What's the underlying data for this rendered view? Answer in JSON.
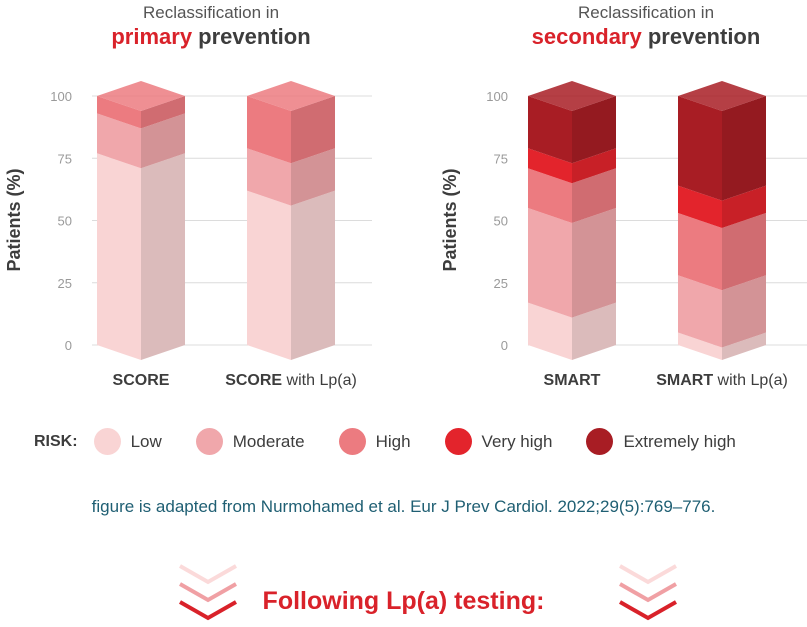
{
  "colors": {
    "Low": "#f9d4d4",
    "Moderate": "#f0a7ab",
    "High": "#ec7b80",
    "Very high": "#e3242c",
    "Extremely high": "#a81d24"
  },
  "panels": [
    {
      "title_line1": "Reclassification in",
      "title_accent": "primary",
      "title_rest": " prevention"
    },
    {
      "title_line1": "Reclassification in",
      "title_accent": "secondary",
      "title_rest": " prevention"
    }
  ],
  "chart_data": [
    {
      "type": "bar",
      "stacked": true,
      "ylabel": "Patients (%)",
      "ylim": [
        0,
        100
      ],
      "yticks": [
        0,
        25,
        50,
        75,
        100
      ],
      "grid": true,
      "categories": [
        {
          "bold": "SCORE",
          "rest": ""
        },
        {
          "bold": "SCORE",
          "rest": " with Lp(a)"
        }
      ],
      "series": [
        {
          "name": "Low",
          "values": [
            77,
            62
          ]
        },
        {
          "name": "Moderate",
          "values": [
            16,
            17
          ]
        },
        {
          "name": "High",
          "values": [
            7,
            21
          ]
        },
        {
          "name": "Very high",
          "values": [
            0,
            0
          ]
        },
        {
          "name": "Extremely high",
          "values": [
            0,
            0
          ]
        }
      ]
    },
    {
      "type": "bar",
      "stacked": true,
      "ylabel": "Patients (%)",
      "ylim": [
        0,
        100
      ],
      "yticks": [
        0,
        25,
        50,
        75,
        100
      ],
      "grid": true,
      "categories": [
        {
          "bold": "SMART",
          "rest": ""
        },
        {
          "bold": "SMART",
          "rest": " with Lp(a)"
        }
      ],
      "series": [
        {
          "name": "Low",
          "values": [
            17,
            5
          ]
        },
        {
          "name": "Moderate",
          "values": [
            38,
            23
          ]
        },
        {
          "name": "High",
          "values": [
            16,
            25
          ]
        },
        {
          "name": "Very high",
          "values": [
            8,
            11
          ]
        },
        {
          "name": "Extremely high",
          "values": [
            21,
            36
          ]
        }
      ]
    }
  ],
  "legend": {
    "title": "RISK:",
    "items": [
      "Low",
      "Moderate",
      "High",
      "Very high",
      "Extremely high"
    ]
  },
  "source": "figure is adapted from Nurmohamed et al. Eur J Prev Cardiol. 2022;29(5):769–776.",
  "footer": "Following Lp(a) testing:"
}
